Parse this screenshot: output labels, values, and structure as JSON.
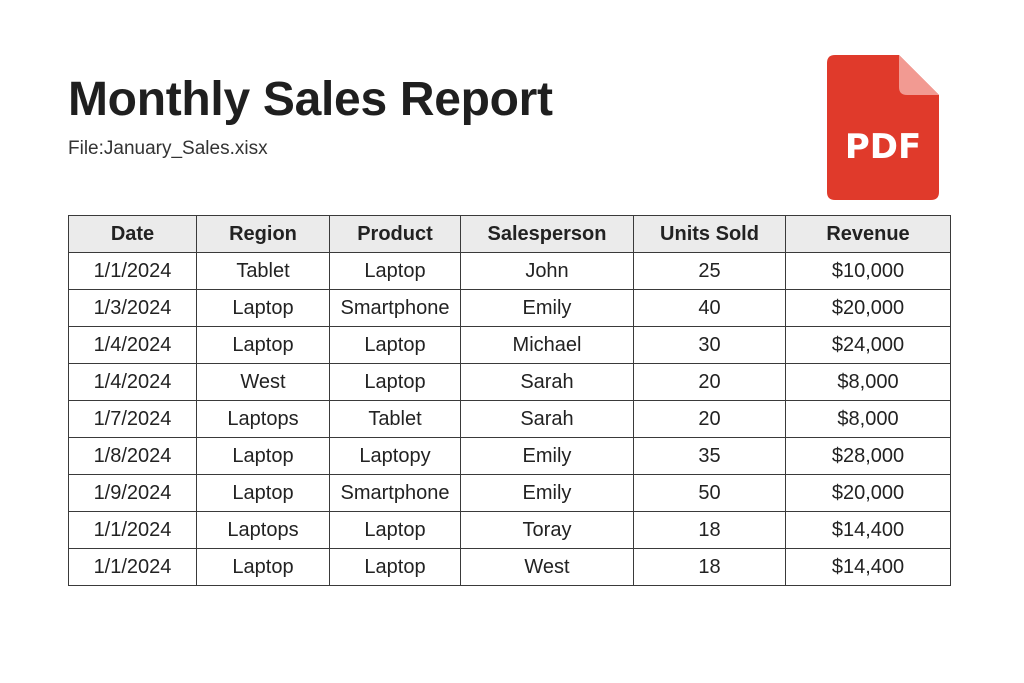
{
  "document": {
    "title": "Monthly Sales Report",
    "file_line": "File:January_Sales.xisx",
    "pdf_icon": {
      "label": "PDF",
      "icon_name": "pdf-file-icon",
      "color": "#E03A2B",
      "fold_color": "#F29A92"
    }
  },
  "table": {
    "columns": [
      "Date",
      "Region",
      "Product",
      "Salesperson",
      "Units Sold",
      "Revenue"
    ],
    "rows": [
      [
        "1/1/2024",
        "Tablet",
        "Laptop",
        "John",
        "25",
        "$10,000"
      ],
      [
        "1/3/2024",
        "Laptop",
        "Smartphone",
        "Emily",
        "40",
        "$20,000"
      ],
      [
        "1/4/2024",
        "Laptop",
        "Laptop",
        "Michael",
        "30",
        "$24,000"
      ],
      [
        "1/4/2024",
        "West",
        "Laptop",
        "Sarah",
        "20",
        "$8,000"
      ],
      [
        "1/7/2024",
        "Laptops",
        "Tablet",
        "Sarah",
        "20",
        "$8,000"
      ],
      [
        "1/8/2024",
        "Laptop",
        "Laptopy",
        "Emily",
        "35",
        "$28,000"
      ],
      [
        "1/9/2024",
        "Laptop",
        "Smartphone",
        "Emily",
        "50",
        "$20,000"
      ],
      [
        "1/1/2024",
        "Laptops",
        "Laptop",
        "Toray",
        "18",
        "$14,400"
      ],
      [
        "1/1/2024",
        "Laptop",
        "Laptop",
        "West",
        "18",
        "$14,400"
      ]
    ],
    "header_background": "#EBEBEB",
    "border_color": "#3A3A3A"
  }
}
